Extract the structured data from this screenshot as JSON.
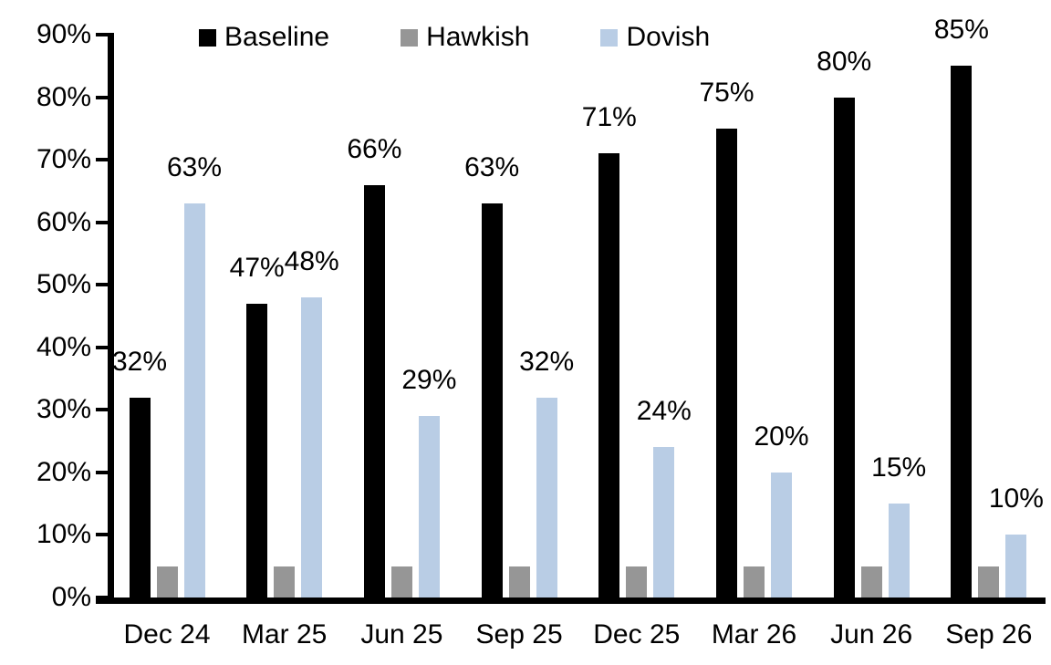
{
  "chart_data": {
    "type": "bar",
    "title": "",
    "xlabel": "",
    "ylabel": "",
    "categories": [
      "Dec 24",
      "Mar 25",
      "Jun 25",
      "Sep 25",
      "Dec 25",
      "Mar 26",
      "Jun 26",
      "Sep 26"
    ],
    "series": [
      {
        "name": "Baseline",
        "color": "#000000",
        "values": [
          32,
          47,
          66,
          63,
          71,
          75,
          80,
          85
        ],
        "labels_shown": true,
        "data_labels": [
          "32%",
          "47%",
          "66%",
          "63%",
          "71%",
          "75%",
          "80%",
          "85%"
        ]
      },
      {
        "name": "Hawkish",
        "color": "#969696",
        "values": [
          5,
          5,
          5,
          5,
          5,
          5,
          5,
          5
        ],
        "labels_shown": false,
        "data_labels": []
      },
      {
        "name": "Dovish",
        "color": "#B9CDE5",
        "values": [
          63,
          48,
          29,
          32,
          24,
          20,
          15,
          10
        ],
        "labels_shown": true,
        "data_labels": [
          "63%",
          "48%",
          "29%",
          "32%",
          "24%",
          "20%",
          "15%",
          "10%"
        ]
      }
    ],
    "ylim": [
      0,
      90
    ],
    "ytick_step": 10,
    "ytick_labels": [
      "0%",
      "10%",
      "20%",
      "30%",
      "40%",
      "50%",
      "60%",
      "70%",
      "80%",
      "90%"
    ],
    "legend_position": "top",
    "legend_entries": [
      "Baseline",
      "Hawkish",
      "Dovish"
    ],
    "grid": false,
    "axis_color": "#000000",
    "background_color": "#ffffff"
  }
}
